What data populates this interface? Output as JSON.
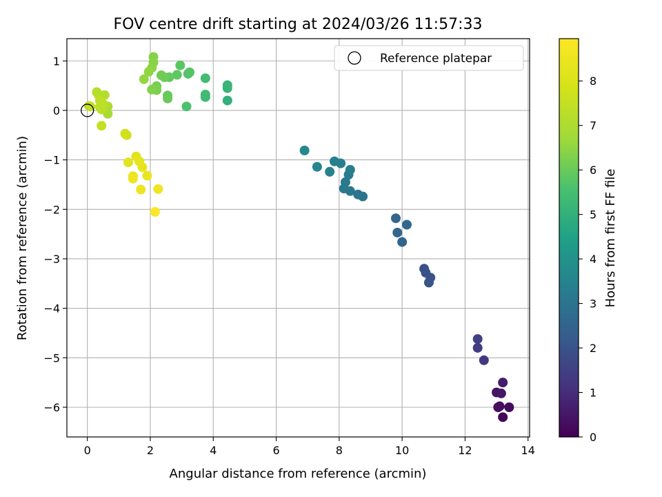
{
  "chart_data": {
    "type": "scatter",
    "title": "FOV centre drift starting at 2024/03/26 11:57:33",
    "xlabel": "Angular distance from reference (arcmin)",
    "ylabel": "Rotation from reference (arcmin)",
    "xlim": [
      -0.65,
      14.05
    ],
    "ylim": [
      -6.6,
      1.45
    ],
    "xticks": [
      0,
      2,
      4,
      6,
      8,
      10,
      12,
      14
    ],
    "yticks": [
      -6,
      -5,
      -4,
      -3,
      -2,
      -1,
      0,
      1
    ],
    "grid": true,
    "colorbar": {
      "label": "Hours from first FF file",
      "colormap": "viridis",
      "range": [
        0,
        8.95
      ],
      "ticks": [
        0,
        1,
        2,
        3,
        4,
        5,
        6,
        7,
        8
      ]
    },
    "legend": {
      "position": "top-right",
      "entries": [
        "Reference platepar"
      ]
    },
    "reference_point": {
      "x": 0,
      "y": 0
    },
    "points": [
      {
        "x": 13.2,
        "y": -6.2,
        "h": 0.1
      },
      {
        "x": 13.05,
        "y": -6.0,
        "h": 0.2
      },
      {
        "x": 13.4,
        "y": -6.0,
        "h": 0.25
      },
      {
        "x": 13.1,
        "y": -5.98,
        "h": 0.3
      },
      {
        "x": 13.0,
        "y": -5.7,
        "h": 0.4
      },
      {
        "x": 13.15,
        "y": -5.72,
        "h": 0.5
      },
      {
        "x": 13.2,
        "y": -5.5,
        "h": 0.6
      },
      {
        "x": 12.6,
        "y": -5.05,
        "h": 1.3
      },
      {
        "x": 12.4,
        "y": -4.8,
        "h": 1.4
      },
      {
        "x": 12.4,
        "y": -4.62,
        "h": 1.5
      },
      {
        "x": 10.7,
        "y": -3.2,
        "h": 1.9
      },
      {
        "x": 10.75,
        "y": -3.28,
        "h": 1.95
      },
      {
        "x": 10.9,
        "y": -3.38,
        "h": 2.0
      },
      {
        "x": 10.85,
        "y": -3.48,
        "h": 2.05
      },
      {
        "x": 10.0,
        "y": -2.66,
        "h": 2.5
      },
      {
        "x": 9.85,
        "y": -2.47,
        "h": 2.55
      },
      {
        "x": 9.8,
        "y": -2.18,
        "h": 2.6
      },
      {
        "x": 10.15,
        "y": -2.31,
        "h": 2.65
      },
      {
        "x": 8.75,
        "y": -1.74,
        "h": 3.0
      },
      {
        "x": 8.6,
        "y": -1.7,
        "h": 3.05
      },
      {
        "x": 8.35,
        "y": -1.63,
        "h": 3.1
      },
      {
        "x": 8.15,
        "y": -1.58,
        "h": 3.15
      },
      {
        "x": 8.2,
        "y": -1.45,
        "h": 3.2
      },
      {
        "x": 8.3,
        "y": -1.3,
        "h": 3.25
      },
      {
        "x": 8.35,
        "y": -1.2,
        "h": 3.3
      },
      {
        "x": 8.05,
        "y": -1.07,
        "h": 3.35
      },
      {
        "x": 7.85,
        "y": -1.03,
        "h": 3.4
      },
      {
        "x": 7.7,
        "y": -1.24,
        "h": 3.45
      },
      {
        "x": 7.3,
        "y": -1.14,
        "h": 3.55
      },
      {
        "x": 6.9,
        "y": -0.81,
        "h": 3.65
      },
      {
        "x": 4.45,
        "y": 0.2,
        "h": 5.0
      },
      {
        "x": 4.45,
        "y": 0.45,
        "h": 5.1
      },
      {
        "x": 4.45,
        "y": 0.51,
        "h": 5.15
      },
      {
        "x": 3.75,
        "y": 0.27,
        "h": 5.3
      },
      {
        "x": 3.75,
        "y": 0.32,
        "h": 5.35
      },
      {
        "x": 3.75,
        "y": 0.65,
        "h": 5.4
      },
      {
        "x": 3.15,
        "y": 0.08,
        "h": 5.6
      },
      {
        "x": 3.2,
        "y": 0.74,
        "h": 5.7
      },
      {
        "x": 3.25,
        "y": 0.77,
        "h": 5.72
      },
      {
        "x": 2.95,
        "y": 0.91,
        "h": 5.8
      },
      {
        "x": 2.85,
        "y": 0.72,
        "h": 5.85
      },
      {
        "x": 2.6,
        "y": 0.67,
        "h": 5.9
      },
      {
        "x": 2.55,
        "y": 0.3,
        "h": 5.95
      },
      {
        "x": 2.55,
        "y": 0.24,
        "h": 6.0
      },
      {
        "x": 2.45,
        "y": 0.67,
        "h": 6.05
      },
      {
        "x": 2.35,
        "y": 0.71,
        "h": 6.1
      },
      {
        "x": 2.2,
        "y": 0.49,
        "h": 6.15
      },
      {
        "x": 2.1,
        "y": 0.43,
        "h": 6.2
      },
      {
        "x": 2.2,
        "y": 0.41,
        "h": 6.25
      },
      {
        "x": 2.05,
        "y": 0.42,
        "h": 6.3
      },
      {
        "x": 2.1,
        "y": 1.08,
        "h": 6.35
      },
      {
        "x": 2.1,
        "y": 0.97,
        "h": 6.4
      },
      {
        "x": 2.05,
        "y": 0.86,
        "h": 6.45
      },
      {
        "x": 1.95,
        "y": 0.78,
        "h": 6.5
      },
      {
        "x": 1.8,
        "y": 0.63,
        "h": 6.55
      },
      {
        "x": 0.65,
        "y": -0.07,
        "h": 6.9
      },
      {
        "x": 0.65,
        "y": 0.08,
        "h": 7.0
      },
      {
        "x": 0.55,
        "y": 0.31,
        "h": 7.1
      },
      {
        "x": 0.35,
        "y": 0.32,
        "h": 7.15
      },
      {
        "x": 0.3,
        "y": 0.37,
        "h": 7.2
      },
      {
        "x": 0.45,
        "y": 0.02,
        "h": 7.25
      },
      {
        "x": 0.4,
        "y": 0.07,
        "h": 7.3
      },
      {
        "x": 0.5,
        "y": 0.13,
        "h": 7.32
      },
      {
        "x": 0.4,
        "y": 0.2,
        "h": 7.35
      },
      {
        "x": 0.1,
        "y": 0.08,
        "h": 7.4
      },
      {
        "x": 0.05,
        "y": 0.09,
        "h": 7.45
      },
      {
        "x": 0.45,
        "y": -0.31,
        "h": 7.5
      },
      {
        "x": 1.2,
        "y": -0.47,
        "h": 7.7
      },
      {
        "x": 1.25,
        "y": -0.5,
        "h": 7.75
      },
      {
        "x": 1.3,
        "y": -1.05,
        "h": 8.2
      },
      {
        "x": 1.55,
        "y": -0.93,
        "h": 8.25
      },
      {
        "x": 1.65,
        "y": -1.03,
        "h": 8.3
      },
      {
        "x": 1.75,
        "y": -1.15,
        "h": 8.35
      },
      {
        "x": 1.9,
        "y": -1.32,
        "h": 8.4
      },
      {
        "x": 1.45,
        "y": -1.33,
        "h": 8.45
      },
      {
        "x": 1.45,
        "y": -1.38,
        "h": 8.5
      },
      {
        "x": 1.7,
        "y": -1.6,
        "h": 8.55
      },
      {
        "x": 2.25,
        "y": -1.59,
        "h": 8.6
      },
      {
        "x": 2.15,
        "y": -2.05,
        "h": 8.9
      }
    ]
  }
}
